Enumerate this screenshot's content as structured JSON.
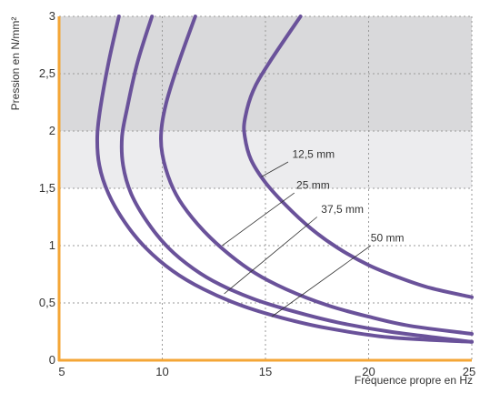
{
  "chart_data": {
    "type": "line",
    "xlabel": "Fréquence propre en Hz",
    "ylabel": "Pression en N/mm²",
    "xlim": [
      5,
      25
    ],
    "ylim": [
      0,
      3
    ],
    "xticks": [
      5,
      10,
      15,
      20,
      25
    ],
    "xtick_labels": [
      "5",
      "10",
      "15",
      "20",
      "25"
    ],
    "yticks": [
      0,
      0.5,
      1,
      1.5,
      2,
      2.5,
      3
    ],
    "ytick_labels": [
      "0",
      "0,5",
      "1",
      "1,5",
      "2",
      "2,5",
      "3"
    ],
    "grid": true,
    "bands": [
      {
        "y_from": 2,
        "y_to": 3,
        "color": "#d9d9db"
      },
      {
        "y_from": 1.5,
        "y_to": 2,
        "color": "#ececee"
      }
    ],
    "series_color": "#6a529a",
    "axis_color": "#f4a636",
    "series": [
      {
        "name": "12,5 mm",
        "points": [
          [
            16.7,
            3.0
          ],
          [
            15.2,
            2.6
          ],
          [
            14.4,
            2.35
          ],
          [
            14.0,
            2.1
          ],
          [
            14.0,
            1.95
          ],
          [
            14.3,
            1.75
          ],
          [
            15.0,
            1.55
          ],
          [
            16.0,
            1.35
          ],
          [
            17.2,
            1.15
          ],
          [
            18.5,
            0.98
          ],
          [
            20.0,
            0.83
          ],
          [
            21.5,
            0.72
          ],
          [
            23.0,
            0.63
          ],
          [
            25.0,
            0.55
          ]
        ]
      },
      {
        "name": "25 mm",
        "points": [
          [
            11.6,
            3.0
          ],
          [
            10.8,
            2.6
          ],
          [
            10.2,
            2.25
          ],
          [
            9.95,
            2.0
          ],
          [
            10.0,
            1.8
          ],
          [
            10.4,
            1.55
          ],
          [
            11.0,
            1.35
          ],
          [
            12.0,
            1.13
          ],
          [
            13.2,
            0.93
          ],
          [
            14.5,
            0.76
          ],
          [
            16.0,
            0.62
          ],
          [
            18.0,
            0.48
          ],
          [
            20.0,
            0.38
          ],
          [
            22.0,
            0.3
          ],
          [
            25.0,
            0.23
          ]
        ]
      },
      {
        "name": "37,5 mm",
        "points": [
          [
            9.5,
            3.0
          ],
          [
            8.8,
            2.6
          ],
          [
            8.3,
            2.2
          ],
          [
            8.05,
            1.95
          ],
          [
            8.1,
            1.7
          ],
          [
            8.5,
            1.45
          ],
          [
            9.3,
            1.2
          ],
          [
            10.3,
            0.98
          ],
          [
            11.5,
            0.8
          ],
          [
            12.8,
            0.66
          ],
          [
            14.5,
            0.53
          ],
          [
            16.5,
            0.42
          ],
          [
            18.5,
            0.33
          ],
          [
            21.0,
            0.25
          ],
          [
            25.0,
            0.16
          ]
        ]
      },
      {
        "name": "50 mm",
        "points": [
          [
            7.9,
            3.0
          ],
          [
            7.4,
            2.6
          ],
          [
            7.0,
            2.2
          ],
          [
            6.85,
            1.95
          ],
          [
            6.95,
            1.7
          ],
          [
            7.4,
            1.45
          ],
          [
            8.2,
            1.2
          ],
          [
            9.2,
            0.98
          ],
          [
            10.5,
            0.78
          ],
          [
            12.0,
            0.62
          ],
          [
            13.8,
            0.48
          ],
          [
            15.8,
            0.37
          ],
          [
            18.0,
            0.28
          ],
          [
            21.0,
            0.2
          ],
          [
            25.0,
            0.16
          ]
        ]
      }
    ],
    "annotations": [
      {
        "text": "12,5 mm",
        "series": "12,5 mm",
        "label_at": [
          16.3,
          1.75
        ],
        "pointer_from": [
          16.1,
          1.73
        ],
        "pointer_to": [
          14.8,
          1.6
        ]
      },
      {
        "text": "25 mm",
        "series": "25 mm",
        "label_at": [
          16.5,
          1.48
        ],
        "pointer_from": [
          16.4,
          1.46
        ],
        "pointer_to": [
          12.9,
          1.0
        ]
      },
      {
        "text": "37,5 mm",
        "series": "37,5 mm",
        "label_at": [
          17.7,
          1.27
        ],
        "pointer_from": [
          17.5,
          1.25
        ],
        "pointer_to": [
          13.0,
          0.58
        ]
      },
      {
        "text": "50 mm",
        "series": "50 mm",
        "label_at": [
          20.1,
          1.02
        ],
        "pointer_from": [
          20.1,
          1.0
        ],
        "pointer_to": [
          15.3,
          0.38
        ]
      }
    ]
  }
}
